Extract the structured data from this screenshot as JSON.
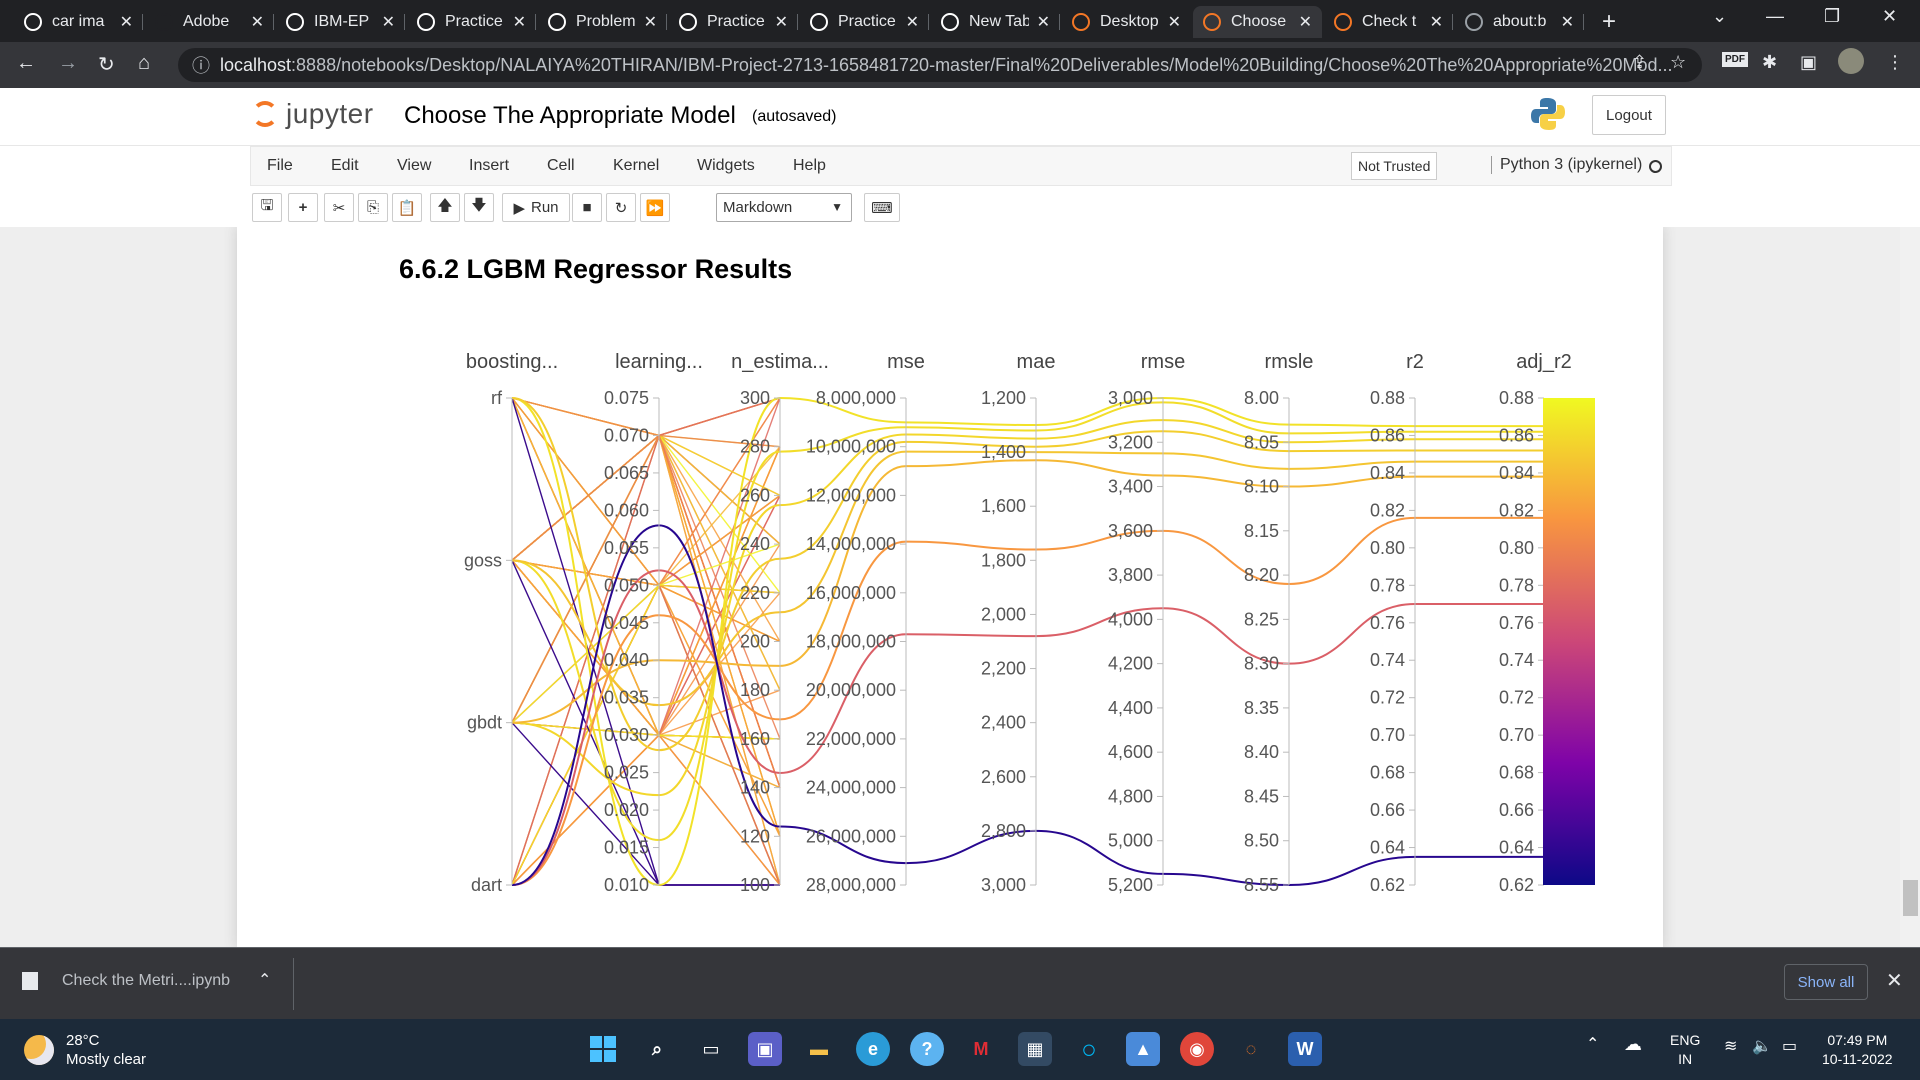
{
  "browser": {
    "tabs": [
      {
        "label": "car ima",
        "icon": "google-icon",
        "color": "#ffffff"
      },
      {
        "label": "Adobe",
        "icon": "adobe-icon",
        "color": "#202124"
      },
      {
        "label": "IBM-EP",
        "icon": "github-icon",
        "color": "#ffffff"
      },
      {
        "label": "Practice",
        "icon": "cc-icon",
        "color": "#ffffff"
      },
      {
        "label": "Problem",
        "icon": "cc-icon",
        "color": "#ffffff"
      },
      {
        "label": "Practice",
        "icon": "cc-icon",
        "color": "#ffffff"
      },
      {
        "label": "Practice",
        "icon": "cc-icon",
        "color": "#ffffff"
      },
      {
        "label": "New Tab",
        "icon": "newtab-icon",
        "color": "#ffffff"
      },
      {
        "label": "Desktop",
        "icon": "jupyter-icon",
        "color": "#f37726"
      },
      {
        "label": "Choose",
        "icon": "notebook-icon",
        "color": "#f37726"
      },
      {
        "label": "Check t",
        "icon": "notebook-icon",
        "color": "#f37726"
      },
      {
        "label": "about:b",
        "icon": "globe-icon",
        "color": "#9aa0a6"
      }
    ],
    "active_tab": 9,
    "url_host": "localhost",
    "url_rest": ":8888/notebooks/Desktop/NALAIYA%20THIRAN/IBM-Project-2713-1658481720-master/Final%20Deliverables/Model%20Building/Choose%20The%20Appropriate%20Mod..."
  },
  "jupyter": {
    "logo_text": "jupyter",
    "notebook_title": "Choose The Appropriate Model",
    "autosave": "(autosaved)",
    "logout_label": "Logout",
    "menu": [
      "File",
      "Edit",
      "View",
      "Insert",
      "Cell",
      "Kernel",
      "Widgets",
      "Help"
    ],
    "trust_label": "Not Trusted",
    "kernel_label": "Python 3 (ipykernel)",
    "run_label": "Run",
    "cell_type": "Markdown"
  },
  "notebook": {
    "heading": "6.6.2 LGBM Regressor Results"
  },
  "chart_data": {
    "type": "parallel_coordinates",
    "dimensions": [
      {
        "name": "boosting...",
        "ticks": [
          "rf",
          "goss",
          "gbdt",
          "dart"
        ],
        "categorical": true
      },
      {
        "name": "learning...",
        "ticks": [
          "0.075",
          "0.070",
          "0.065",
          "0.060",
          "0.055",
          "0.050",
          "0.045",
          "0.040",
          "0.035",
          "0.030",
          "0.025",
          "0.020",
          "0.015",
          "0.010"
        ],
        "range": [
          0.075,
          0.01
        ]
      },
      {
        "name": "n_estima...",
        "ticks": [
          "300",
          "280",
          "260",
          "240",
          "220",
          "200",
          "180",
          "160",
          "140",
          "120",
          "100"
        ],
        "range": [
          300,
          100
        ]
      },
      {
        "name": "mse",
        "ticks": [
          "8,000,000",
          "10,000,000",
          "12,000,000",
          "14,000,000",
          "16,000,000",
          "18,000,000",
          "20,000,000",
          "22,000,000",
          "24,000,000",
          "26,000,000",
          "28,000,000"
        ],
        "range": [
          8000000,
          28000000
        ]
      },
      {
        "name": "mae",
        "ticks": [
          "1,200",
          "1,400",
          "1,600",
          "1,800",
          "2,000",
          "2,200",
          "2,400",
          "2,600",
          "2,800",
          "3,000"
        ],
        "range": [
          1200,
          3000
        ]
      },
      {
        "name": "rmse",
        "ticks": [
          "3,000",
          "3,200",
          "3,400",
          "3,600",
          "3,800",
          "4,000",
          "4,200",
          "4,400",
          "4,600",
          "4,800",
          "5,000",
          "5,200"
        ],
        "range": [
          3000,
          5200
        ]
      },
      {
        "name": "rmsle",
        "ticks": [
          "8.00",
          "8.05",
          "8.10",
          "8.15",
          "8.20",
          "8.25",
          "8.30",
          "8.35",
          "8.40",
          "8.45",
          "8.50",
          "8.55"
        ],
        "range": [
          8.0,
          8.55
        ]
      },
      {
        "name": "r2",
        "ticks": [
          "0.88",
          "0.86",
          "0.84",
          "0.82",
          "0.80",
          "0.78",
          "0.76",
          "0.74",
          "0.72",
          "0.70",
          "0.68",
          "0.66",
          "0.64",
          "0.62"
        ],
        "range": [
          0.88,
          0.62
        ]
      },
      {
        "name": "adj_r2",
        "ticks": [
          "0.88",
          "0.86",
          "0.84",
          "0.82",
          "0.80",
          "0.78",
          "0.76",
          "0.74",
          "0.72",
          "0.70",
          "0.68",
          "0.66",
          "0.64",
          "0.62"
        ],
        "range": [
          0.88,
          0.62
        ]
      }
    ],
    "colorscale": [
      "#0d0887",
      "#7e03a8",
      "#cc4778",
      "#f89540",
      "#f0f921"
    ],
    "color_dimension": "adj_r2",
    "highlighted_lines": [
      {
        "boosting": "rf",
        "mse": 9000000,
        "mae": 1300,
        "rmse": 3000,
        "rmsle": 8.03,
        "r2": 0.865,
        "adj_r2": 0.865
      },
      {
        "boosting": "goss",
        "mse": 9200000,
        "mae": 1320,
        "rmse": 3020,
        "rmsle": 8.04,
        "r2": 0.862,
        "adj_r2": 0.862
      },
      {
        "boosting": "gbdt",
        "mse": 9500000,
        "mae": 1350,
        "rmse": 3100,
        "rmsle": 8.05,
        "r2": 0.858,
        "adj_r2": 0.858
      },
      {
        "boosting": "rf",
        "mse": 9800000,
        "mae": 1380,
        "rmse": 3150,
        "rmsle": 8.06,
        "r2": 0.852,
        "adj_r2": 0.852
      },
      {
        "boosting": "goss",
        "mse": 10200000,
        "mae": 1400,
        "rmse": 3250,
        "rmsle": 8.08,
        "r2": 0.846,
        "adj_r2": 0.846
      },
      {
        "boosting": "gbdt",
        "mse": 10800000,
        "mae": 1430,
        "rmse": 3350,
        "rmsle": 8.1,
        "r2": 0.838,
        "adj_r2": 0.838
      },
      {
        "boosting": "dart",
        "mse": 13900000,
        "mae": 1760,
        "rmse": 3600,
        "rmsle": 8.21,
        "r2": 0.816,
        "adj_r2": 0.816
      },
      {
        "boosting": "dart",
        "mse": 17700000,
        "mae": 2080,
        "rmse": 3950,
        "rmsle": 8.3,
        "r2": 0.77,
        "adj_r2": 0.77
      },
      {
        "boosting": "dart",
        "mse": 27100000,
        "mae": 2800,
        "rmse": 5150,
        "rmsle": 8.55,
        "r2": 0.635,
        "adj_r2": 0.635
      }
    ]
  },
  "download": {
    "filename": "Check the Metri....ipynb",
    "show_all": "Show all"
  },
  "taskbar": {
    "temperature": "28°C",
    "weather": "Mostly clear",
    "lang": "ENG",
    "region": "IN",
    "time": "07:49 PM",
    "date": "10-11-2022"
  }
}
